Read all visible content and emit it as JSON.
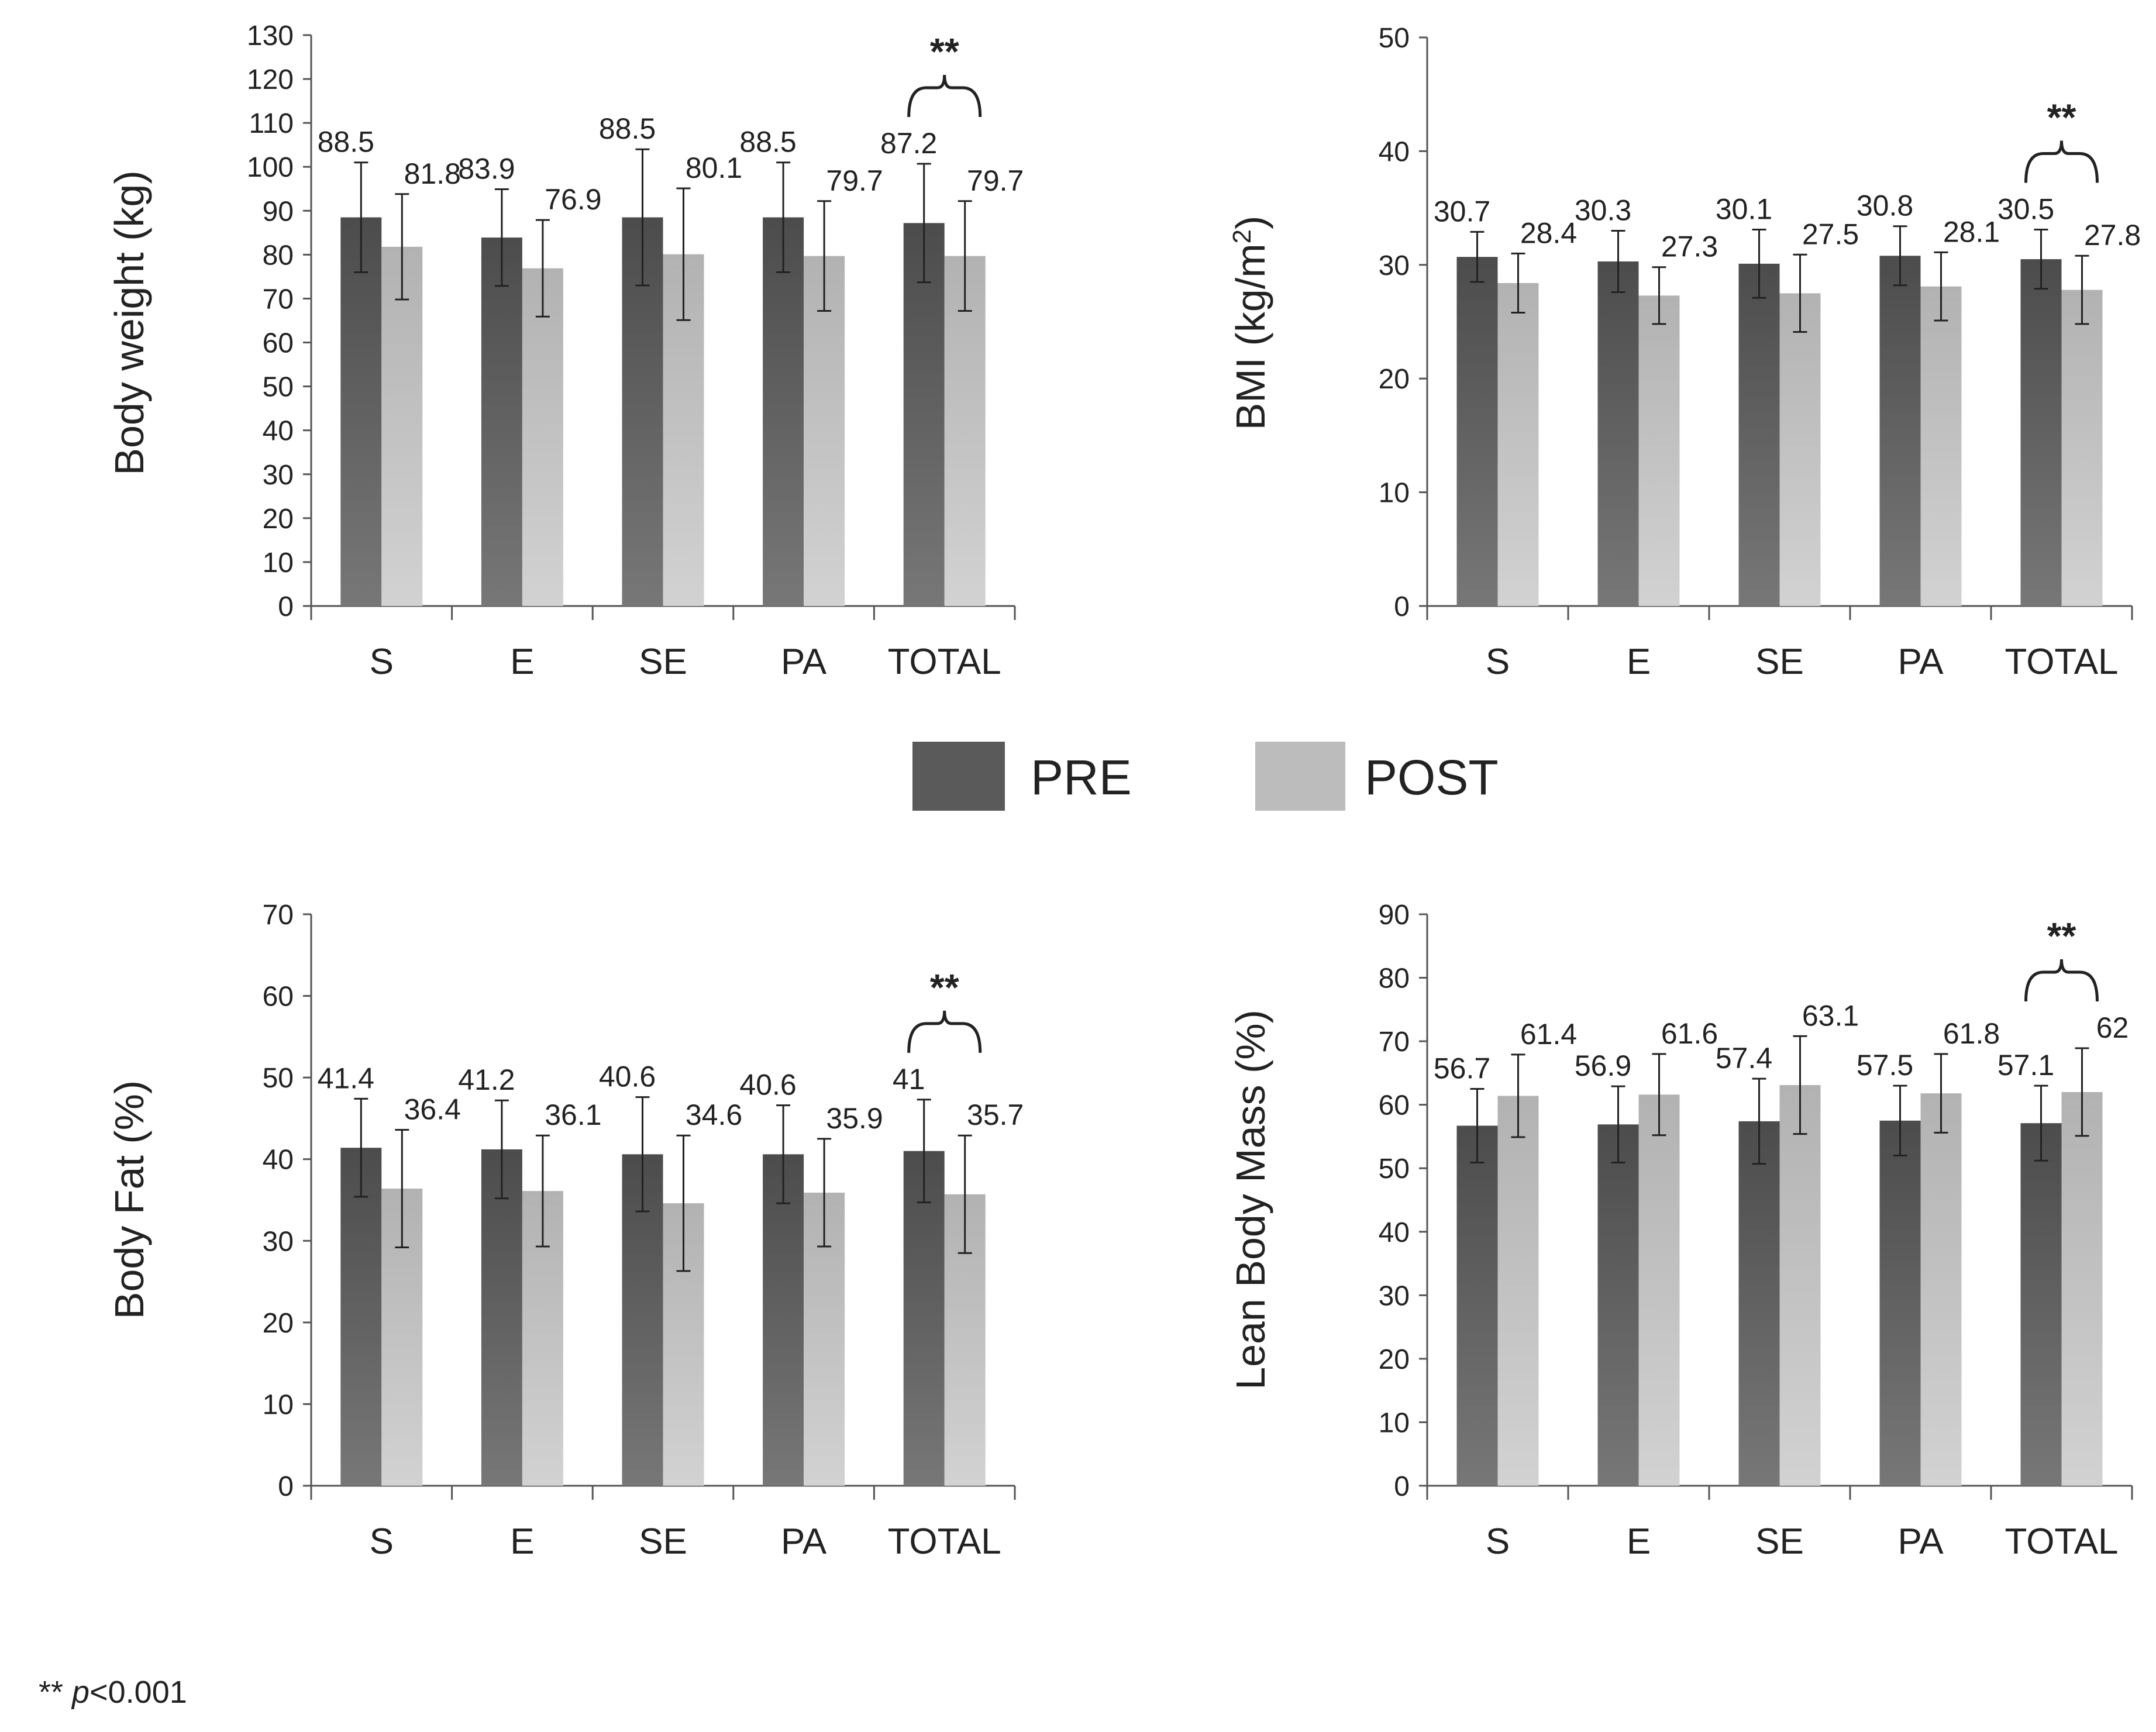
{
  "colors": {
    "pre": "#5a5a5a",
    "post": "#bcbcbc",
    "pre_light": "#767676",
    "post_light": "#d0d0d0"
  },
  "legend": [
    {
      "name": "PRE",
      "color": "#5a5a5a"
    },
    {
      "name": "POST",
      "color": "#bcbcbc"
    }
  ],
  "footnote": {
    "stars": "**",
    "p": "p",
    "rest": "<0.001"
  },
  "chart_data": [
    {
      "type": "bar",
      "ylabel": "Body weight (kg)",
      "ylim": [
        0,
        130
      ],
      "yticks": [
        0,
        10,
        20,
        30,
        40,
        50,
        60,
        70,
        80,
        90,
        100,
        110,
        120,
        130
      ],
      "categories": [
        "S",
        "E",
        "SE",
        "PA",
        "TOTAL"
      ],
      "series": [
        {
          "name": "PRE",
          "values": [
            88.5,
            83.9,
            88.5,
            88.5,
            87.2
          ],
          "labels": [
            "88.5",
            "83.9",
            "88.5",
            "88.5",
            "87.2"
          ],
          "errors": [
            12.5,
            11,
            15.5,
            12.5,
            13.5
          ]
        },
        {
          "name": "POST",
          "values": [
            81.8,
            76.9,
            80.1,
            79.7,
            79.7
          ],
          "labels": [
            "81.8",
            "76.9",
            "80.1",
            "79.7",
            "79.7"
          ],
          "errors": [
            12,
            11,
            15,
            12.5,
            12.5
          ]
        }
      ],
      "significance": {
        "category": "TOTAL",
        "label": "**"
      }
    },
    {
      "type": "bar",
      "ylabel": "BMI (kg/m2)",
      "ylabel_main": "BMI (kg/m",
      "ylabel_sup": "2",
      "ylabel_end": ")",
      "ylim": [
        0,
        50
      ],
      "yticks": [
        0,
        10,
        20,
        30,
        40,
        50
      ],
      "categories": [
        "S",
        "E",
        "SE",
        "PA",
        "TOTAL"
      ],
      "series": [
        {
          "name": "PRE",
          "values": [
            30.7,
            30.3,
            30.1,
            30.8,
            30.5
          ],
          "labels": [
            "30.7",
            "30.3",
            "30.1",
            "30.8",
            "30.5"
          ],
          "errors": [
            2.2,
            2.7,
            3.0,
            2.6,
            2.6
          ]
        },
        {
          "name": "POST",
          "values": [
            28.4,
            27.3,
            27.5,
            28.1,
            27.8
          ],
          "labels": [
            "28.4",
            "27.3",
            "27.5",
            "28.1",
            "27.8"
          ],
          "errors": [
            2.6,
            2.5,
            3.4,
            3.0,
            3.0
          ]
        }
      ],
      "significance": {
        "category": "TOTAL",
        "label": "**"
      }
    },
    {
      "type": "bar",
      "ylabel": "Body Fat (%)",
      "ylim": [
        0,
        70
      ],
      "yticks": [
        0,
        10,
        20,
        30,
        40,
        50,
        60,
        70
      ],
      "categories": [
        "S",
        "E",
        "SE",
        "PA",
        "TOTAL"
      ],
      "series": [
        {
          "name": "PRE",
          "values": [
            41.4,
            41.2,
            40.6,
            40.6,
            41
          ],
          "labels": [
            "41.4",
            "41.2",
            "40.6",
            "40.6",
            "41"
          ],
          "errors": [
            6,
            6,
            7,
            6,
            6.3
          ]
        },
        {
          "name": "POST",
          "values": [
            36.4,
            36.1,
            34.6,
            35.9,
            35.7
          ],
          "labels": [
            "36.4",
            "36.1",
            "34.6",
            "35.9",
            "35.7"
          ],
          "errors": [
            7.2,
            6.8,
            8.3,
            6.6,
            7.2
          ]
        }
      ],
      "significance": {
        "category": "TOTAL",
        "label": "**"
      }
    },
    {
      "type": "bar",
      "ylabel": "Lean Body Mass (%)",
      "ylim": [
        0,
        90
      ],
      "yticks": [
        0,
        10,
        20,
        30,
        40,
        50,
        60,
        70,
        80,
        90
      ],
      "categories": [
        "S",
        "E",
        "SE",
        "PA",
        "TOTAL"
      ],
      "series": [
        {
          "name": "PRE",
          "values": [
            56.7,
            56.9,
            57.4,
            57.5,
            57.1
          ],
          "labels": [
            "56.7",
            "56.9",
            "57.4",
            "57.5",
            "57.1"
          ],
          "errors": [
            5.8,
            6,
            6.7,
            5.5,
            5.9
          ]
        },
        {
          "name": "POST",
          "values": [
            61.4,
            61.6,
            63.1,
            61.8,
            62
          ],
          "labels": [
            "61.4",
            "61.6",
            "63.1",
            "61.8",
            "62"
          ],
          "errors": [
            6.5,
            6.4,
            7.7,
            6.2,
            6.9
          ]
        }
      ],
      "significance": {
        "category": "TOTAL",
        "label": "**"
      }
    }
  ]
}
